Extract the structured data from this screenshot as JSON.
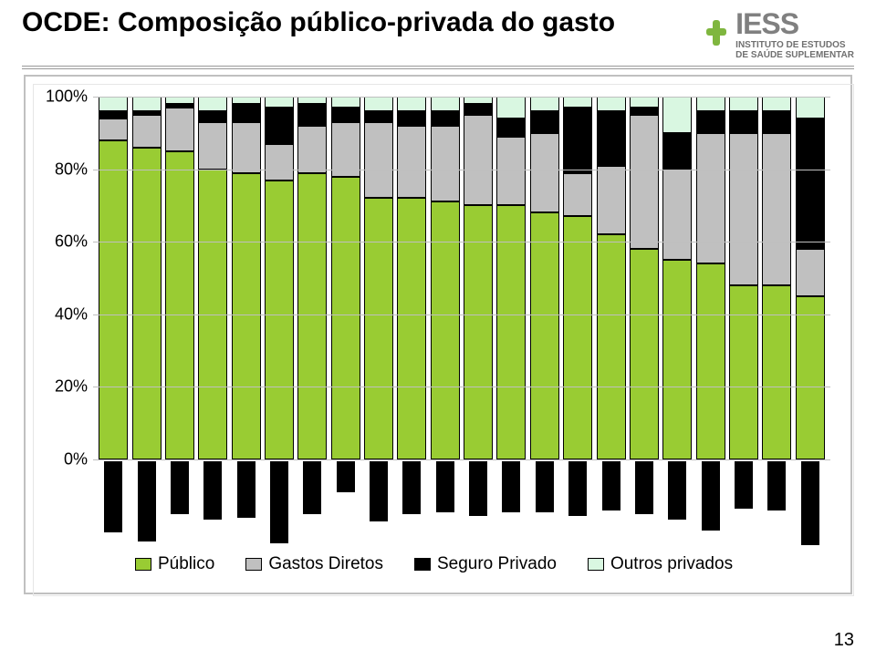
{
  "header": {
    "title": "OCDE: Composição público-privada do gasto",
    "logo_acronym": "IESS",
    "logo_line1": "INSTITUTO DE ESTUDOS",
    "logo_line2": "DE SAÚDE SUPLEMENTAR",
    "logo_cross_color": "#7fb63f"
  },
  "page_number": "13",
  "chart": {
    "type": "stacked-bar-100",
    "ylim": [
      0,
      100
    ],
    "ytick_step": 20,
    "ytick_labels": [
      "0%",
      "20%",
      "40%",
      "60%",
      "80%",
      "100%"
    ],
    "grid_color": "#bfbfbf",
    "background_color": "#ffffff",
    "legend": [
      {
        "label": "Público",
        "color": "#99cc33"
      },
      {
        "label": "Gastos Diretos",
        "color": "#c0c0c0"
      },
      {
        "label": "Seguro Privado",
        "color": "#000000"
      },
      {
        "label": "Outros privados",
        "color": "#d9f7e1"
      }
    ],
    "stack_order": [
      "publico",
      "gastos_diretos",
      "seguro_privado",
      "outros_privados"
    ],
    "colors": {
      "publico": "#99cc33",
      "gastos_diretos": "#c0c0c0",
      "seguro_privado": "#000000",
      "outros_privados": "#d9f7e1"
    },
    "xaxis_block_heights": [
      78,
      88,
      58,
      64,
      62,
      90,
      58,
      34,
      66,
      58,
      56,
      60,
      56,
      56,
      60,
      54,
      58,
      64,
      76,
      52,
      54,
      92
    ],
    "data": [
      {
        "publico": 88,
        "gastos_diretos": 6,
        "seguro_privado": 2,
        "outros_privados": 4
      },
      {
        "publico": 86,
        "gastos_diretos": 9,
        "seguro_privado": 1,
        "outros_privados": 4
      },
      {
        "publico": 85,
        "gastos_diretos": 12,
        "seguro_privado": 1,
        "outros_privados": 2
      },
      {
        "publico": 80,
        "gastos_diretos": 13,
        "seguro_privado": 3,
        "outros_privados": 4
      },
      {
        "publico": 79,
        "gastos_diretos": 14,
        "seguro_privado": 5,
        "outros_privados": 2
      },
      {
        "publico": 77,
        "gastos_diretos": 10,
        "seguro_privado": 10,
        "outros_privados": 3
      },
      {
        "publico": 79,
        "gastos_diretos": 13,
        "seguro_privado": 6,
        "outros_privados": 2
      },
      {
        "publico": 78,
        "gastos_diretos": 15,
        "seguro_privado": 4,
        "outros_privados": 3
      },
      {
        "publico": 72,
        "gastos_diretos": 21,
        "seguro_privado": 3,
        "outros_privados": 4
      },
      {
        "publico": 72,
        "gastos_diretos": 20,
        "seguro_privado": 4,
        "outros_privados": 4
      },
      {
        "publico": 71,
        "gastos_diretos": 21,
        "seguro_privado": 4,
        "outros_privados": 4
      },
      {
        "publico": 70,
        "gastos_diretos": 25,
        "seguro_privado": 3,
        "outros_privados": 2
      },
      {
        "publico": 70,
        "gastos_diretos": 19,
        "seguro_privado": 5,
        "outros_privados": 6
      },
      {
        "publico": 68,
        "gastos_diretos": 22,
        "seguro_privado": 6,
        "outros_privados": 4
      },
      {
        "publico": 67,
        "gastos_diretos": 12,
        "seguro_privado": 18,
        "outros_privados": 3
      },
      {
        "publico": 62,
        "gastos_diretos": 19,
        "seguro_privado": 15,
        "outros_privados": 4
      },
      {
        "publico": 58,
        "gastos_diretos": 37,
        "seguro_privado": 2,
        "outros_privados": 3
      },
      {
        "publico": 55,
        "gastos_diretos": 25,
        "seguro_privado": 10,
        "outros_privados": 10
      },
      {
        "publico": 54,
        "gastos_diretos": 36,
        "seguro_privado": 6,
        "outros_privados": 4
      },
      {
        "publico": 48,
        "gastos_diretos": 42,
        "seguro_privado": 6,
        "outros_privados": 4
      },
      {
        "publico": 48,
        "gastos_diretos": 42,
        "seguro_privado": 6,
        "outros_privados": 4
      },
      {
        "publico": 45,
        "gastos_diretos": 13,
        "seguro_privado": 36,
        "outros_privados": 6
      }
    ]
  }
}
